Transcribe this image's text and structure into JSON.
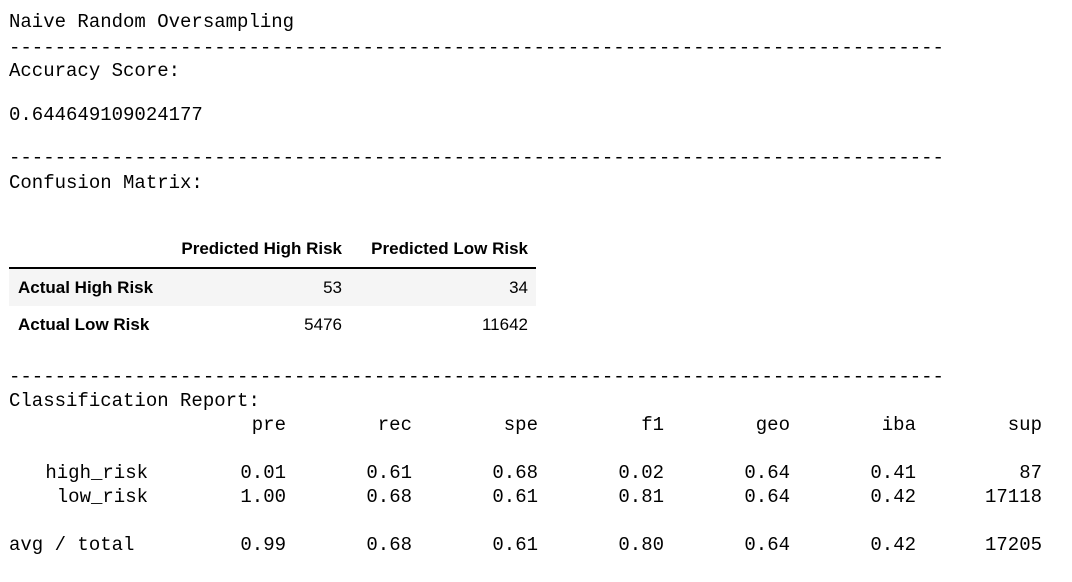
{
  "output": {
    "heading": "Naive Random Oversampling",
    "separator": "------------------------------------------------------------------------------------------------------------------------------------",
    "accuracy_label": "Accuracy Score:",
    "accuracy_value": "0.644649109024177",
    "confusion_label": "Confusion Matrix:",
    "classification_label": "Classification Report:"
  },
  "confusion_matrix": {
    "columns": [
      "Predicted High Risk",
      "Predicted Low Risk"
    ],
    "rows": [
      {
        "label": "Actual High Risk",
        "values": [
          "53",
          "34"
        ]
      },
      {
        "label": "Actual Low Risk",
        "values": [
          "5476",
          "11642"
        ]
      }
    ]
  },
  "classification_report": {
    "headers": [
      "pre",
      "rec",
      "spe",
      "f1",
      "geo",
      "iba",
      "sup"
    ],
    "rows": [
      {
        "label": "high_risk",
        "values": [
          "0.01",
          "0.61",
          "0.68",
          "0.02",
          "0.64",
          "0.41",
          "87"
        ]
      },
      {
        "label": "low_risk",
        "values": [
          "1.00",
          "0.68",
          "0.61",
          "0.81",
          "0.64",
          "0.42",
          "17118"
        ]
      }
    ],
    "total": {
      "label": "avg / total",
      "values": [
        "0.99",
        "0.68",
        "0.61",
        "0.80",
        "0.64",
        "0.42",
        "17205"
      ]
    }
  }
}
